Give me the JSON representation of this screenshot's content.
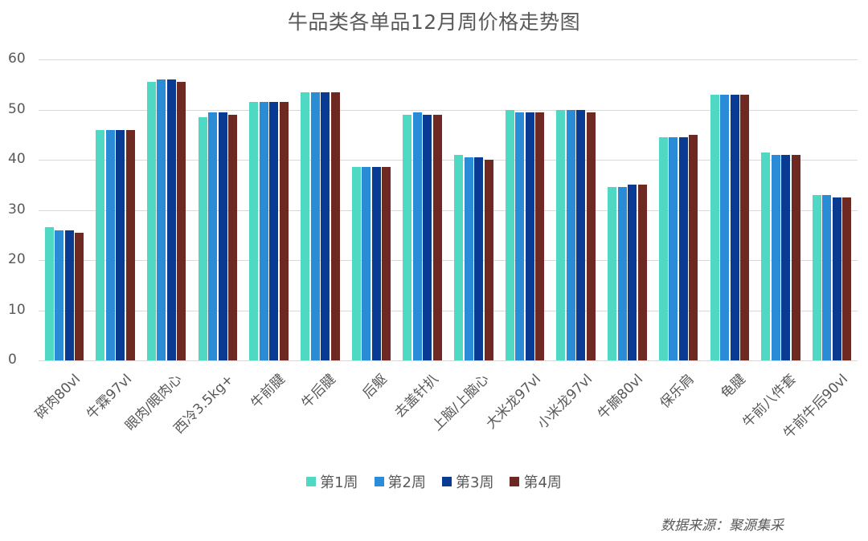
{
  "chart_data": {
    "type": "bar",
    "title": "牛品类各单品12月周价格走势图",
    "xlabel": "",
    "ylabel": "",
    "ylim": [
      0,
      60
    ],
    "yticks": [
      0,
      10,
      20,
      30,
      40,
      50,
      60
    ],
    "grid": true,
    "legend_position": "bottom",
    "categories": [
      "碎肉80vl",
      "牛霖97vl",
      "眼肉/眼肉心",
      "西冷3.5kg+",
      "牛前腱",
      "牛后腱",
      "后躯",
      "去盖针扒",
      "上脑/上脑心",
      "大米龙97vl",
      "小米龙97vl",
      "牛腩80vl",
      "保乐肩",
      "龟腱",
      "牛前八件套",
      "牛前牛后90vl"
    ],
    "series": [
      {
        "name": "第1周",
        "color": "#4fd9c4",
        "values": [
          26.5,
          46,
          55.5,
          48.5,
          51.5,
          53.5,
          38.5,
          49,
          41,
          50,
          50,
          34.5,
          44.5,
          53,
          41.5,
          33
        ]
      },
      {
        "name": "第2周",
        "color": "#2a8bd6",
        "values": [
          26,
          46,
          56,
          49.5,
          51.5,
          53.5,
          38.5,
          49.5,
          40.5,
          49.5,
          50,
          34.5,
          44.5,
          53,
          41,
          33
        ]
      },
      {
        "name": "第3周",
        "color": "#0a3b93",
        "values": [
          26,
          46,
          56,
          49.5,
          51.5,
          53.5,
          38.5,
          49,
          40.5,
          49.5,
          50,
          35,
          44.5,
          53,
          41,
          32.5
        ]
      },
      {
        "name": "第4周",
        "color": "#6e2a22",
        "values": [
          25.5,
          46,
          55.5,
          49,
          51.5,
          53.5,
          38.5,
          49,
          40,
          49.5,
          49.5,
          35,
          45,
          53,
          41,
          32.5
        ]
      }
    ]
  },
  "legend": [
    "第1周",
    "第2周",
    "第3周",
    "第4周"
  ],
  "source": "数据来源：聚源集采"
}
